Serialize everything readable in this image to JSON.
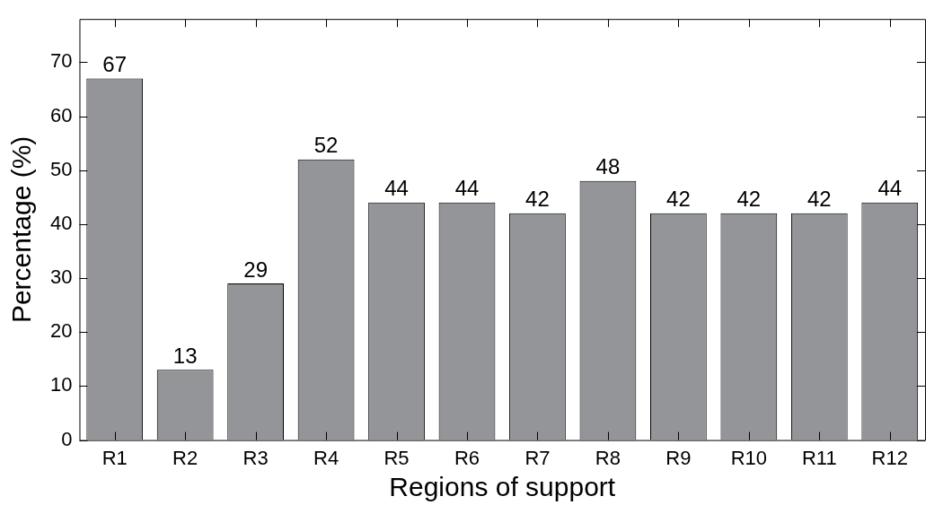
{
  "chart_data": {
    "type": "bar",
    "xlabel": "Regions of support",
    "ylabel": "Percentage (%)",
    "categories": [
      "R1",
      "R2",
      "R3",
      "R4",
      "R5",
      "R6",
      "R7",
      "R8",
      "R9",
      "R10",
      "R11",
      "R12"
    ],
    "values": [
      67,
      13,
      29,
      52,
      44,
      44,
      42,
      48,
      42,
      42,
      42,
      44
    ],
    "color": "#939598",
    "ylim": [
      0,
      78
    ],
    "yticks": [
      0,
      10,
      20,
      30,
      40,
      50,
      60,
      70
    ],
    "data_labels": true,
    "grid": false,
    "legend": false
  }
}
